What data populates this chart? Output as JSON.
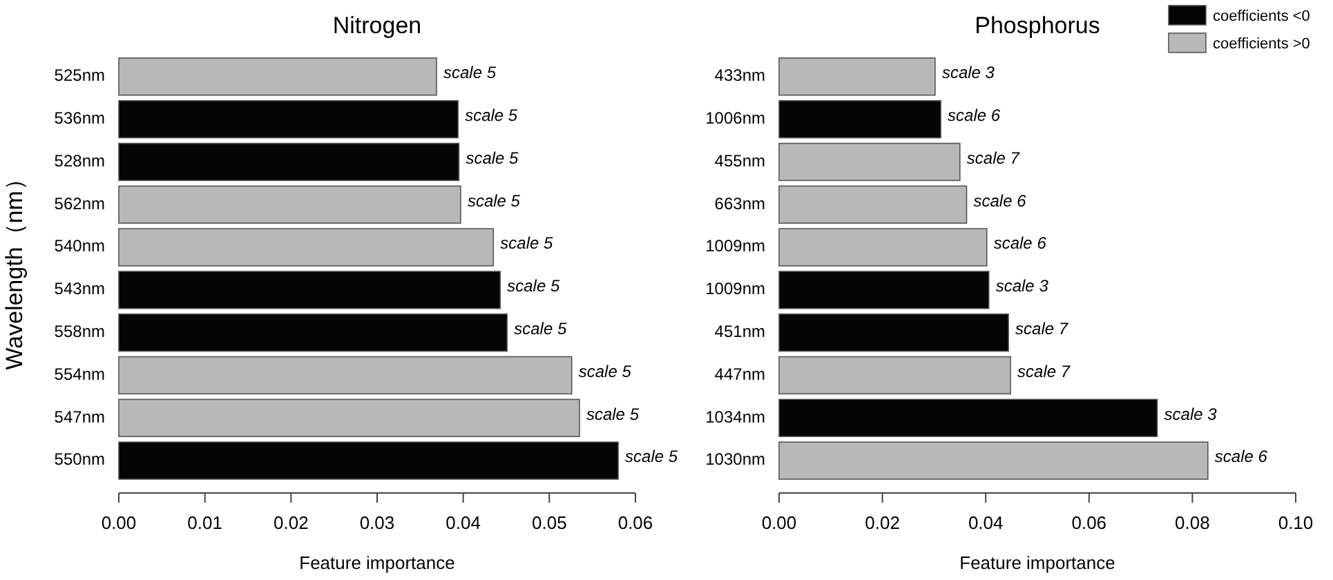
{
  "chart_data": [
    {
      "type": "bar",
      "orientation": "horizontal",
      "title": "Nitrogen",
      "xlabel": "Feature importance",
      "ylabel": "Wavelength（nm）",
      "categories": [
        "525nm",
        "536nm",
        "528nm",
        "562nm",
        "540nm",
        "543nm",
        "558nm",
        "554nm",
        "547nm",
        "550nm"
      ],
      "xlim": [
        0,
        0.06
      ],
      "xticks": [
        {
          "value": 0,
          "label": "0.00"
        },
        {
          "value": 0.01,
          "label": "0.01"
        },
        {
          "value": 0.02,
          "label": "0.02"
        },
        {
          "value": 0.03,
          "label": "0.03"
        },
        {
          "value": 0.04,
          "label": "0.04"
        },
        {
          "value": 0.05,
          "label": "0.05"
        },
        {
          "value": 0.06,
          "label": "0.06"
        }
      ],
      "series": [
        {
          "color": "#050505",
          "values": [
            null,
            0.0394,
            0.0395,
            null,
            null,
            0.0443,
            0.0451,
            null,
            null,
            0.058
          ],
          "value_labels": [
            null,
            "scale 5",
            "scale 5",
            null,
            null,
            "scale 5",
            "scale 5",
            null,
            null,
            "scale 5"
          ]
        },
        {
          "color": "#b8b8b8",
          "values": [
            0.0369,
            null,
            null,
            0.0397,
            0.0435,
            null,
            null,
            0.0526,
            0.0535,
            null
          ],
          "value_labels": [
            "scale 5",
            null,
            null,
            "scale 5",
            "scale 5",
            null,
            null,
            "scale 5",
            "scale 5",
            null
          ]
        }
      ]
    },
    {
      "type": "bar",
      "orientation": "horizontal",
      "title": "Phosphorus",
      "xlabel": "Feature importance",
      "legend": "top right",
      "categories": [
        "433nm",
        "1006nm",
        "455nm",
        "663nm",
        "1009nm",
        "1009nm",
        "451nm",
        "447nm",
        "1034nm",
        "1030nm"
      ],
      "xlim": [
        0,
        0.1
      ],
      "xticks": [
        {
          "value": 0,
          "label": "0.00"
        },
        {
          "value": 0.02,
          "label": "0.02"
        },
        {
          "value": 0.04,
          "label": "0.04"
        },
        {
          "value": 0.06,
          "label": "0.06"
        },
        {
          "value": 0.08,
          "label": "0.08"
        },
        {
          "value": 0.1,
          "label": "0.10"
        }
      ],
      "series": [
        {
          "name": "coefficients <0",
          "color": "#050505",
          "values": [
            null,
            0.0313,
            null,
            null,
            null,
            0.0406,
            0.0444,
            null,
            0.0732,
            null
          ],
          "value_labels": [
            null,
            "scale 6",
            null,
            null,
            null,
            "scale 3",
            "scale 7",
            null,
            "scale 3",
            null
          ]
        },
        {
          "name": "coefficients >0",
          "color": "#b8b8b8",
          "values": [
            0.0302,
            null,
            0.035,
            0.0363,
            0.0402,
            null,
            null,
            0.0448,
            null,
            0.083
          ],
          "value_labels": [
            "scale 3",
            null,
            "scale 7",
            "scale 6",
            "scale 6",
            null,
            null,
            "scale 7",
            null,
            "scale 6"
          ]
        }
      ]
    }
  ]
}
